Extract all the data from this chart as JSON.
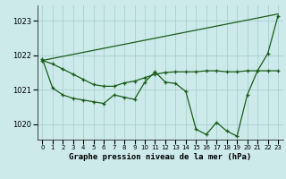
{
  "background_color": "#cceaea",
  "grid_color": "#aacfcf",
  "line_color": "#1a5c1a",
  "title": "Graphe pression niveau de la mer (hPa)",
  "xlim": [
    -0.5,
    23.5
  ],
  "ylim": [
    1019.55,
    1023.45
  ],
  "yticks": [
    1020,
    1021,
    1022,
    1023
  ],
  "xticks": [
    0,
    1,
    2,
    3,
    4,
    5,
    6,
    7,
    8,
    9,
    10,
    11,
    12,
    13,
    14,
    15,
    16,
    17,
    18,
    19,
    20,
    21,
    22,
    23
  ],
  "series1_y": [
    1021.85,
    1021.75,
    1021.6,
    1021.45,
    1021.3,
    1021.15,
    1021.1,
    1021.1,
    1021.2,
    1021.25,
    1021.35,
    1021.45,
    1021.5,
    1021.52,
    1021.52,
    1021.52,
    1021.55,
    1021.55,
    1021.52,
    1021.52,
    1021.55,
    1021.55,
    1021.55,
    1021.55
  ],
  "series2_y": [
    1021.9,
    1021.05,
    1020.85,
    1020.75,
    1020.7,
    1020.65,
    1020.6,
    1020.85,
    1020.78,
    1020.72,
    1021.22,
    1021.52,
    1021.22,
    1021.18,
    1020.95,
    1019.85,
    1019.7,
    1020.05,
    1019.8,
    1019.65,
    1020.85,
    1021.55,
    1022.05,
    1023.15
  ],
  "series3_y": [
    1021.85,
    1023.2
  ]
}
